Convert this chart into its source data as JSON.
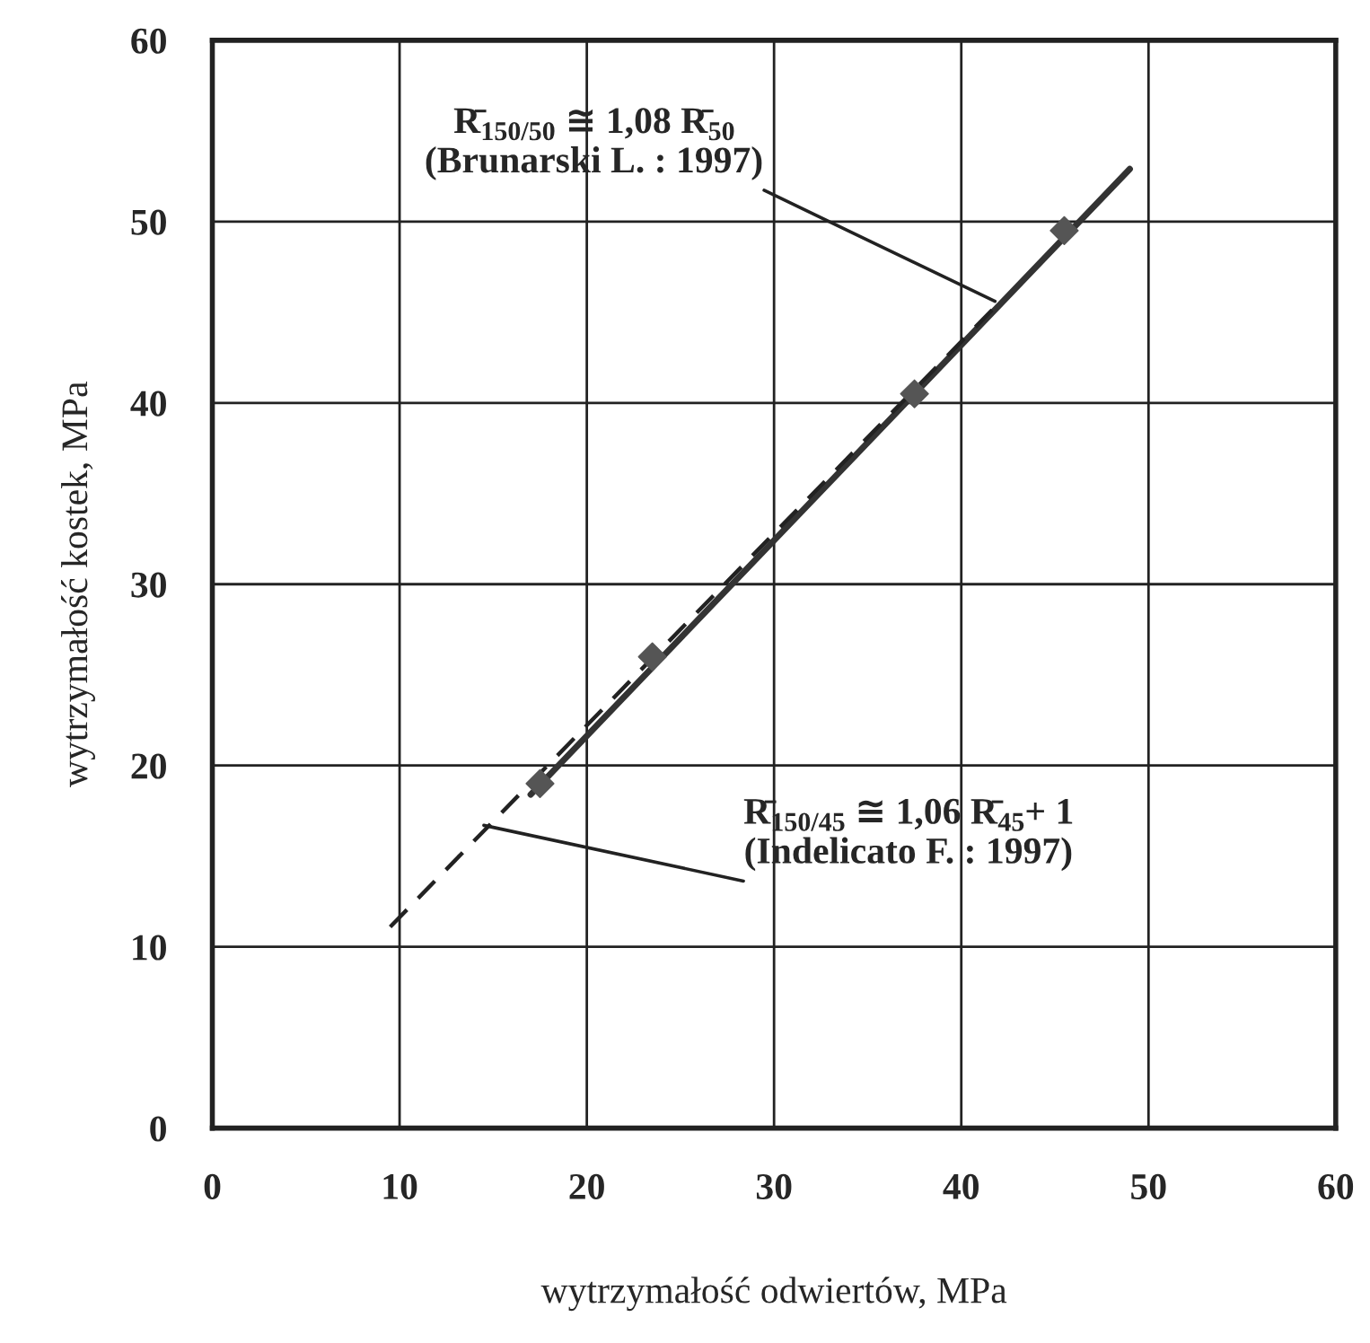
{
  "chart_data": {
    "type": "scatter",
    "xlabel": "wytrzymałość odwiertów, MPa",
    "ylabel": "wytrzymałość kostek, MPa",
    "xlim": [
      0,
      60
    ],
    "ylim": [
      0,
      60
    ],
    "xticks": [
      0,
      10,
      20,
      30,
      40,
      50,
      60
    ],
    "yticks": [
      0,
      10,
      20,
      30,
      40,
      50,
      60
    ],
    "grid": true,
    "legend": false,
    "series": [
      {
        "color": "#555555",
        "marker": "diamond",
        "x": [
          17.5,
          23.5,
          37.5,
          45.5
        ],
        "values": [
          19,
          26,
          40.5,
          49.5
        ]
      },
      {
        "type": "line",
        "color": "#333333",
        "line_style": "solid",
        "marker": "none",
        "x": [
          17,
          49
        ],
        "values": [
          18.4,
          52.9
        ]
      },
      {
        "type": "line",
        "color": "#222222",
        "line_style": "dashed",
        "marker": "none",
        "x": [
          9.5,
          42
        ],
        "values": [
          11.1,
          45.5
        ]
      }
    ],
    "annotations": [
      {
        "text": "R̄$_{150/50}$ ≅ 1,08 R̄$_{50}$\n(Brunarski L. : 1997)",
        "x": 41.8,
        "y": 45.6
      },
      {
        "text": "R̄$_{150/45}$ ≅ 1,06 R̄$_{45}$+ 1\n(Indelicato F. : 1997)",
        "x": 14.5,
        "y": 16.7
      }
    ]
  }
}
